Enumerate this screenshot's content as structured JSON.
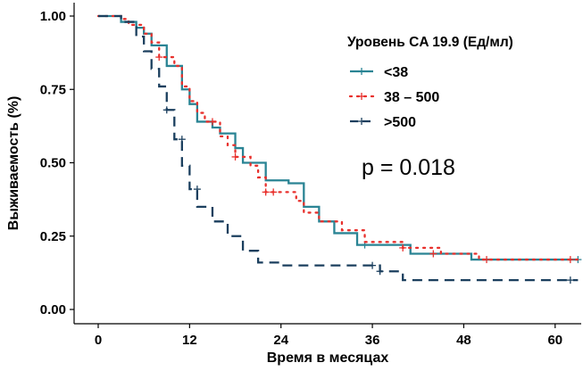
{
  "chart_data": {
    "type": "line",
    "subtype": "kaplan-meier step curves",
    "xlabel": "Время в месяцах",
    "ylabel": "Выживаемость (%)",
    "xlim": [
      0,
      63
    ],
    "ylim": [
      0,
      1
    ],
    "xticks": [
      0,
      12,
      24,
      36,
      48,
      60
    ],
    "xtick_labels": [
      "0",
      "12",
      "24",
      "36",
      "48",
      "60"
    ],
    "yticks": [
      0,
      0.25,
      0.5,
      0.75,
      1.0
    ],
    "ytick_labels": [
      "0.00",
      "0.25",
      "0.50",
      "0.75",
      "1.00"
    ],
    "grid": false,
    "legend_title": "Уровень CA 19.9 (Ед/мл)",
    "legend_position": "top-right",
    "annotation": "p = 0.018",
    "series": [
      {
        "name": "<38",
        "color": "#2a8494",
        "style": "solid",
        "x": [
          0,
          3,
          5,
          6,
          7,
          9,
          11,
          12,
          13,
          15,
          16,
          18,
          19,
          22,
          25,
          27,
          29,
          31,
          34,
          41,
          49,
          63
        ],
        "y": [
          1.0,
          0.98,
          0.96,
          0.94,
          0.9,
          0.83,
          0.75,
          0.7,
          0.64,
          0.62,
          0.6,
          0.55,
          0.5,
          0.44,
          0.43,
          0.35,
          0.3,
          0.26,
          0.22,
          0.19,
          0.17,
          0.17
        ],
        "censored": [
          [
            35,
            0.22
          ],
          [
            63,
            0.17
          ]
        ]
      },
      {
        "name": "38 – 500",
        "color": "#e8302c",
        "style": "dotted",
        "x": [
          0,
          3,
          4,
          6,
          7,
          8,
          10,
          11,
          12,
          13,
          14,
          16,
          17,
          18,
          20,
          21,
          22,
          26,
          27,
          29,
          32,
          35,
          40,
          45,
          50,
          63
        ],
        "y": [
          1.0,
          0.99,
          0.97,
          0.94,
          0.91,
          0.86,
          0.83,
          0.76,
          0.71,
          0.67,
          0.64,
          0.59,
          0.56,
          0.52,
          0.49,
          0.45,
          0.4,
          0.37,
          0.33,
          0.3,
          0.27,
          0.23,
          0.21,
          0.19,
          0.17,
          0.17
        ],
        "censored": [
          [
            8,
            0.86
          ],
          [
            15,
            0.64
          ],
          [
            18,
            0.52
          ],
          [
            22,
            0.4
          ],
          [
            23,
            0.4
          ],
          [
            40,
            0.21
          ],
          [
            44,
            0.19
          ],
          [
            51,
            0.17
          ],
          [
            62,
            0.17
          ]
        ]
      },
      {
        "name": ">500",
        "color": "#1b3f5e",
        "style": "dashed",
        "x": [
          0,
          3,
          5,
          6,
          7,
          8,
          9,
          10,
          11,
          12,
          13,
          15,
          17,
          19,
          21,
          24,
          37,
          40,
          63
        ],
        "y": [
          1.0,
          0.98,
          0.93,
          0.88,
          0.82,
          0.76,
          0.68,
          0.58,
          0.49,
          0.41,
          0.35,
          0.3,
          0.25,
          0.2,
          0.16,
          0.15,
          0.13,
          0.1,
          0.1
        ],
        "censored": [
          [
            9,
            0.68
          ],
          [
            11,
            0.58
          ],
          [
            13,
            0.41
          ],
          [
            36,
            0.15
          ],
          [
            37,
            0.13
          ],
          [
            62,
            0.1
          ]
        ]
      }
    ]
  }
}
